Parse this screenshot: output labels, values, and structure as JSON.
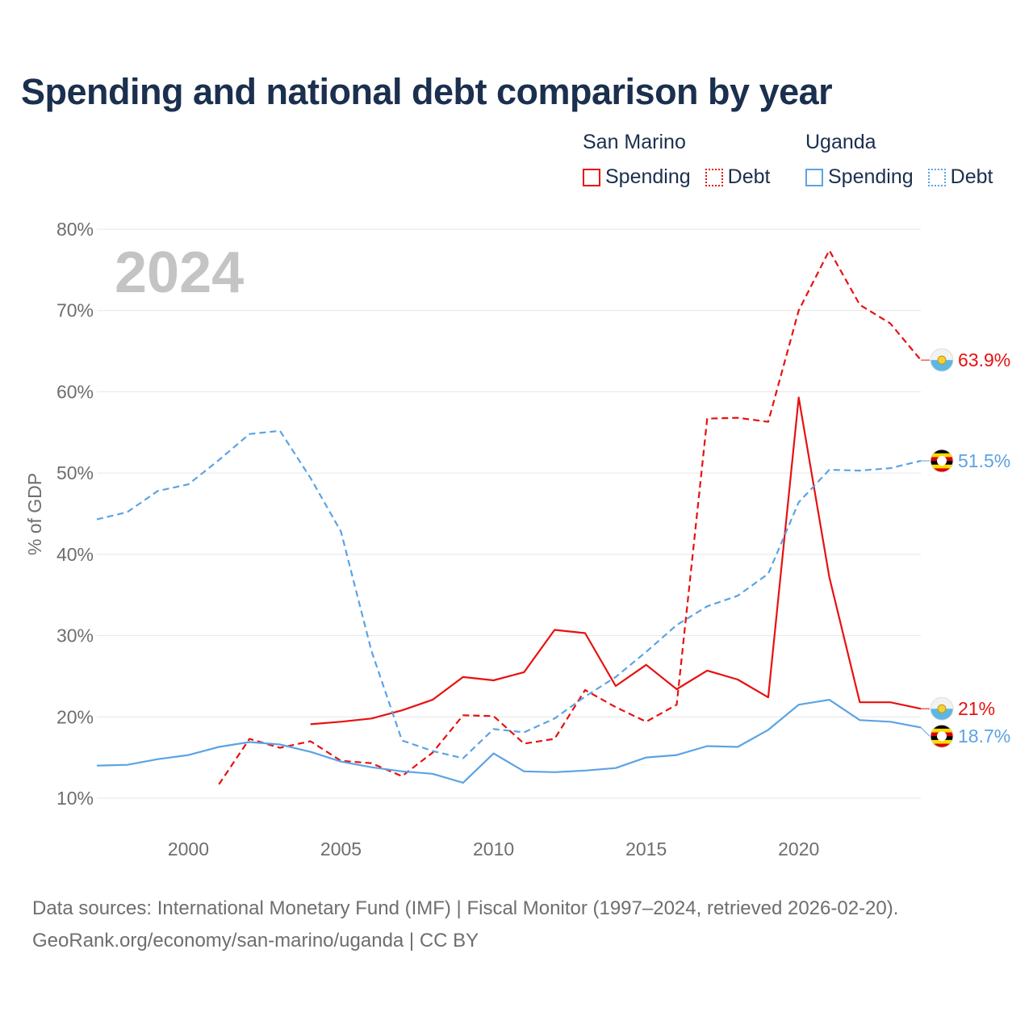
{
  "title": "Spending and national debt comparison by year",
  "legend": {
    "groups": [
      {
        "country": "San Marino",
        "items": [
          "Spending",
          "Debt"
        ]
      },
      {
        "country": "Uganda",
        "items": [
          "Spending",
          "Debt"
        ]
      }
    ]
  },
  "colors": {
    "san_marino": "#e81010",
    "uganda": "#5ca3e4",
    "grid": "#e6e6e6",
    "title": "#1b2f4e"
  },
  "chart_data": {
    "type": "line",
    "ylabel": "% of GDP",
    "xlabel": "",
    "ylim": [
      10,
      80
    ],
    "xlim": [
      1997,
      2024
    ],
    "yticks": [
      10,
      20,
      30,
      40,
      50,
      60,
      70,
      80
    ],
    "ytick_labels": [
      "10%",
      "20%",
      "30%",
      "40%",
      "50%",
      "60%",
      "70%",
      "80%"
    ],
    "xticks": [
      2000,
      2005,
      2010,
      2015,
      2020
    ],
    "xtick_labels": [
      "2000",
      "2005",
      "2010",
      "2015",
      "2020"
    ],
    "year_watermark": "2024",
    "series": [
      {
        "name": "San Marino Spending",
        "style": "solid",
        "color": "#e81010",
        "x": [
          2004,
          2005,
          2006,
          2007,
          2008,
          2009,
          2010,
          2011,
          2012,
          2013,
          2014,
          2015,
          2016,
          2017,
          2018,
          2019,
          2020,
          2021,
          2022,
          2023,
          2024
        ],
        "y": [
          19.1,
          19.4,
          19.8,
          20.8,
          22.1,
          24.9,
          24.5,
          25.5,
          30.7,
          30.3,
          23.8,
          26.4,
          23.4,
          25.7,
          24.6,
          22.4,
          59.3,
          37.2,
          21.8,
          21.8,
          21.0
        ],
        "end_label": "21%"
      },
      {
        "name": "San Marino Debt",
        "style": "dashed",
        "color": "#e81010",
        "x": [
          2001,
          2002,
          2003,
          2004,
          2005,
          2006,
          2007,
          2008,
          2009,
          2010,
          2011,
          2012,
          2013,
          2014,
          2015,
          2016,
          2017,
          2018,
          2019,
          2020,
          2021,
          2022,
          2023,
          2024
        ],
        "y": [
          11.7,
          17.3,
          16.2,
          17.0,
          14.6,
          14.3,
          12.7,
          15.6,
          20.2,
          20.1,
          16.7,
          17.3,
          23.3,
          21.2,
          19.4,
          21.5,
          56.7,
          56.8,
          56.3,
          70.0,
          77.4,
          70.7,
          68.4,
          63.9
        ],
        "end_label": "63.9%"
      },
      {
        "name": "Uganda Spending",
        "style": "solid",
        "color": "#5ca3e4",
        "x": [
          1997,
          1998,
          1999,
          2000,
          2001,
          2002,
          2003,
          2004,
          2005,
          2006,
          2007,
          2008,
          2009,
          2010,
          2011,
          2012,
          2013,
          2014,
          2015,
          2016,
          2017,
          2018,
          2019,
          2020,
          2021,
          2022,
          2023,
          2024
        ],
        "y": [
          14.0,
          14.1,
          14.8,
          15.3,
          16.3,
          16.9,
          16.6,
          15.7,
          14.5,
          13.8,
          13.3,
          13.0,
          11.9,
          15.5,
          13.3,
          13.2,
          13.4,
          13.7,
          15.0,
          15.3,
          16.4,
          16.3,
          18.4,
          21.5,
          22.1,
          19.6,
          19.4,
          18.7
        ],
        "end_label": "18.7%"
      },
      {
        "name": "Uganda Debt",
        "style": "dashed",
        "color": "#5ca3e4",
        "x": [
          1997,
          1998,
          1999,
          2000,
          2001,
          2002,
          2003,
          2004,
          2005,
          2006,
          2007,
          2008,
          2009,
          2010,
          2011,
          2012,
          2013,
          2014,
          2015,
          2016,
          2017,
          2018,
          2019,
          2020,
          2021,
          2022,
          2023,
          2024
        ],
        "y": [
          44.3,
          45.2,
          47.8,
          48.6,
          51.6,
          54.8,
          55.2,
          49.4,
          42.8,
          28.1,
          17.1,
          15.8,
          14.9,
          18.5,
          18.1,
          19.8,
          22.5,
          24.9,
          28.0,
          31.3,
          33.6,
          34.9,
          37.6,
          46.4,
          50.4,
          50.3,
          50.6,
          51.5
        ],
        "end_label": "51.5%"
      }
    ]
  },
  "footer": {
    "source": "Data sources: International Monetary Fund (IMF) | Fiscal Monitor (1997–2024, retrieved 2026-02-20).",
    "credit": "GeoRank.org/economy/san-marino/uganda | CC BY"
  }
}
